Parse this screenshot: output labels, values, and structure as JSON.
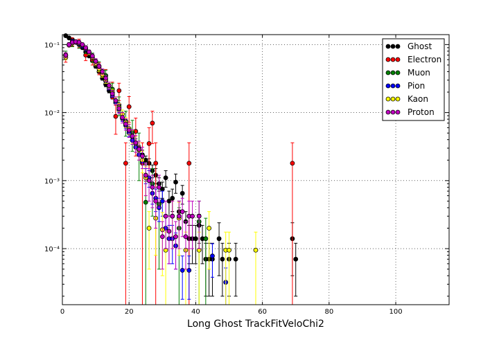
{
  "chart_data": {
    "type": "scatter",
    "xlabel": "Long Ghost TrackFitVeloChi2",
    "ylabel": "",
    "xlim": [
      0,
      116
    ],
    "ylim": [
      1.5e-05,
      0.14
    ],
    "y_scale": "log",
    "grid": true,
    "legend_position": "top-right",
    "x_ticks": [
      0,
      20,
      40,
      60,
      80,
      100
    ],
    "x_tick_labels": [
      "0",
      "20",
      "40",
      "60",
      "80",
      "100"
    ],
    "y_ticks": [
      0.0001,
      0.001,
      0.01,
      0.1
    ],
    "y_tick_labels": [
      "10⁻⁴",
      "10⁻³",
      "10⁻²",
      "10⁻¹"
    ],
    "series": [
      {
        "name": "Ghost",
        "color": "#000000",
        "points": [
          [
            1,
            0.135,
            0.006
          ],
          [
            2,
            0.125,
            0.005
          ],
          [
            3,
            0.118,
            0.005
          ],
          [
            4,
            0.11,
            0.005
          ],
          [
            5,
            0.1,
            0.004
          ],
          [
            6,
            0.09,
            0.004
          ],
          [
            7,
            0.078,
            0.004
          ],
          [
            8,
            0.068,
            0.003
          ],
          [
            9,
            0.058,
            0.003
          ],
          [
            10,
            0.048,
            0.003
          ],
          [
            11,
            0.04,
            0.002
          ],
          [
            12,
            0.032,
            0.002
          ],
          [
            13,
            0.026,
            0.002
          ],
          [
            14,
            0.021,
            0.0015
          ],
          [
            15,
            0.017,
            0.0012
          ],
          [
            16,
            0.014,
            0.001
          ],
          [
            17,
            0.011,
            0.0009
          ],
          [
            18,
            0.0085,
            0.0008
          ],
          [
            19,
            0.0068,
            0.0007
          ],
          [
            20,
            0.0054,
            0.0006
          ],
          [
            21,
            0.0044,
            0.0005
          ],
          [
            22,
            0.0036,
            0.0005
          ],
          [
            23,
            0.0029,
            0.0004
          ],
          [
            24,
            0.0024,
            0.0004
          ],
          [
            25,
            0.002,
            0.0003
          ],
          [
            26,
            0.0018,
            0.0003
          ],
          [
            27,
            0.0014,
            0.0003
          ],
          [
            28,
            0.0012,
            0.0003
          ],
          [
            29,
            0.0009,
            0.0002
          ],
          [
            30,
            0.00075,
            0.0002
          ],
          [
            31,
            0.0011,
            0.0003
          ],
          [
            32,
            0.0005,
            0.0002
          ],
          [
            33,
            0.00055,
            0.0002
          ],
          [
            34,
            0.00095,
            0.0003
          ],
          [
            35,
            0.00035,
            0.00015
          ],
          [
            36,
            0.00065,
            0.0002
          ],
          [
            37,
            0.00025,
            0.0001
          ],
          [
            38,
            0.00014,
            8e-05
          ],
          [
            39,
            0.00014,
            8e-05
          ],
          [
            40,
            0.00014,
            8e-05
          ],
          [
            41,
            0.00022,
            0.0001
          ],
          [
            42,
            0.00014,
            8e-05
          ],
          [
            43,
            7e-05,
            5e-05
          ],
          [
            44,
            7e-05,
            5e-05
          ],
          [
            45,
            7e-05,
            5e-05
          ],
          [
            47,
            0.00014,
            0.0001
          ],
          [
            48,
            7e-05,
            5e-05
          ],
          [
            50,
            7e-05,
            5e-05
          ],
          [
            52,
            7e-05,
            5e-05
          ],
          [
            69,
            0.00014,
            0.0001
          ],
          [
            70,
            7e-05,
            5e-05
          ]
        ]
      },
      {
        "name": "Electron",
        "color": "#ff0000",
        "points": [
          [
            1,
            0.065,
            0.01
          ],
          [
            3,
            0.11,
            0.015
          ],
          [
            5,
            0.105,
            0.015
          ],
          [
            7,
            0.07,
            0.012
          ],
          [
            9,
            0.06,
            0.01
          ],
          [
            11,
            0.045,
            0.009
          ],
          [
            13,
            0.035,
            0.008
          ],
          [
            15,
            0.022,
            0.006
          ],
          [
            16,
            0.0088,
            0.004
          ],
          [
            17,
            0.021,
            0.006
          ],
          [
            19,
            0.0018,
            0.0018
          ],
          [
            20,
            0.0122,
            0.005
          ],
          [
            22,
            0.0053,
            0.003
          ],
          [
            24,
            0.0018,
            0.0018
          ],
          [
            26,
            0.0035,
            0.0025
          ],
          [
            27,
            0.007,
            0.0035
          ],
          [
            28,
            0.0018,
            0.0018
          ],
          [
            38,
            0.0018,
            0.0018
          ],
          [
            69,
            0.0018,
            0.0018
          ]
        ]
      },
      {
        "name": "Muon",
        "color": "#008000",
        "points": [
          [
            1,
            0.07,
            0.01
          ],
          [
            3,
            0.105,
            0.012
          ],
          [
            5,
            0.1,
            0.012
          ],
          [
            7,
            0.085,
            0.011
          ],
          [
            9,
            0.065,
            0.01
          ],
          [
            11,
            0.048,
            0.008
          ],
          [
            13,
            0.035,
            0.007
          ],
          [
            15,
            0.022,
            0.005
          ],
          [
            17,
            0.013,
            0.004
          ],
          [
            19,
            0.0075,
            0.003
          ],
          [
            21,
            0.0052,
            0.0025
          ],
          [
            23,
            0.003,
            0.002
          ],
          [
            25,
            0.00048,
            0.0005
          ],
          [
            27,
            0.0009,
            0.0006
          ],
          [
            29,
            0.00045,
            0.0004
          ],
          [
            35,
            0.0002,
            0.0002
          ],
          [
            41,
            0.00025,
            0.00025
          ],
          [
            43,
            0.00014,
            0.00014
          ]
        ]
      },
      {
        "name": "Pion",
        "color": "#0000ff",
        "points": [
          [
            1,
            0.07,
            0.003
          ],
          [
            2,
            0.1,
            0.003
          ],
          [
            3,
            0.112,
            0.004
          ],
          [
            4,
            0.11,
            0.004
          ],
          [
            5,
            0.102,
            0.004
          ],
          [
            6,
            0.094,
            0.003
          ],
          [
            7,
            0.085,
            0.003
          ],
          [
            8,
            0.075,
            0.003
          ],
          [
            9,
            0.064,
            0.003
          ],
          [
            10,
            0.055,
            0.002
          ],
          [
            11,
            0.045,
            0.002
          ],
          [
            12,
            0.037,
            0.002
          ],
          [
            13,
            0.029,
            0.002
          ],
          [
            14,
            0.023,
            0.0015
          ],
          [
            15,
            0.018,
            0.0012
          ],
          [
            16,
            0.014,
            0.001
          ],
          [
            17,
            0.011,
            0.0009
          ],
          [
            18,
            0.0082,
            0.0008
          ],
          [
            19,
            0.0065,
            0.0007
          ],
          [
            20,
            0.005,
            0.0006
          ],
          [
            21,
            0.0039,
            0.0005
          ],
          [
            22,
            0.0031,
            0.0005
          ],
          [
            23,
            0.0024,
            0.0004
          ],
          [
            24,
            0.0019,
            0.0004
          ],
          [
            25,
            0.0012,
            0.0003
          ],
          [
            26,
            0.0011,
            0.0003
          ],
          [
            27,
            0.00065,
            0.0002
          ],
          [
            28,
            0.00055,
            0.0002
          ],
          [
            29,
            0.0004,
            0.00015
          ],
          [
            30,
            0.0005,
            0.0002
          ],
          [
            31,
            0.0002,
            0.0001
          ],
          [
            32,
            0.00014,
            8e-05
          ],
          [
            33,
            0.00014,
            8e-05
          ],
          [
            34,
            0.00011,
            6e-05
          ],
          [
            36,
            4.8e-05,
            3e-05
          ],
          [
            38,
            4.8e-05,
            3e-05
          ],
          [
            45,
            7.8e-05,
            4e-05
          ],
          [
            49,
            3.2e-05,
            2e-05
          ]
        ]
      },
      {
        "name": "Kaon",
        "color": "#ffff00",
        "points": [
          [
            1,
            0.065,
            0.005
          ],
          [
            2,
            0.098,
            0.006
          ],
          [
            3,
            0.105,
            0.006
          ],
          [
            4,
            0.108,
            0.006
          ],
          [
            5,
            0.105,
            0.006
          ],
          [
            6,
            0.098,
            0.005
          ],
          [
            7,
            0.088,
            0.005
          ],
          [
            8,
            0.075,
            0.005
          ],
          [
            9,
            0.065,
            0.004
          ],
          [
            10,
            0.053,
            0.004
          ],
          [
            11,
            0.044,
            0.004
          ],
          [
            12,
            0.036,
            0.003
          ],
          [
            13,
            0.03,
            0.003
          ],
          [
            14,
            0.025,
            0.002
          ],
          [
            15,
            0.02,
            0.002
          ],
          [
            16,
            0.015,
            0.0018
          ],
          [
            17,
            0.012,
            0.0016
          ],
          [
            18,
            0.0095,
            0.0014
          ],
          [
            19,
            0.0072,
            0.0012
          ],
          [
            20,
            0.0058,
            0.001
          ],
          [
            21,
            0.0045,
            0.001
          ],
          [
            22,
            0.0035,
            0.0009
          ],
          [
            23,
            0.0028,
            0.0008
          ],
          [
            24,
            0.002,
            0.0007
          ],
          [
            25,
            0.0011,
            0.0005
          ],
          [
            26,
            0.0002,
            0.00015
          ],
          [
            28,
            0.00028,
            0.0002
          ],
          [
            30,
            0.00019,
            0.00015
          ],
          [
            31,
            9.5e-05,
            8e-05
          ],
          [
            33,
            0.0003,
            0.0002
          ],
          [
            35,
            0.00028,
            0.0002
          ],
          [
            37,
            9.5e-05,
            8e-05
          ],
          [
            41,
            9.5e-05,
            8e-05
          ],
          [
            44,
            0.0002,
            0.00015
          ],
          [
            49,
            9.5e-05,
            8e-05
          ],
          [
            50,
            9.5e-05,
            8e-05
          ],
          [
            58,
            9.5e-05,
            8e-05
          ]
        ]
      },
      {
        "name": "Proton",
        "color": "#bf00bf",
        "points": [
          [
            1,
            0.07,
            0.006
          ],
          [
            2,
            0.1,
            0.007
          ],
          [
            3,
            0.108,
            0.007
          ],
          [
            4,
            0.11,
            0.007
          ],
          [
            5,
            0.108,
            0.007
          ],
          [
            6,
            0.1,
            0.006
          ],
          [
            7,
            0.09,
            0.006
          ],
          [
            8,
            0.078,
            0.005
          ],
          [
            9,
            0.068,
            0.005
          ],
          [
            10,
            0.057,
            0.005
          ],
          [
            11,
            0.048,
            0.004
          ],
          [
            12,
            0.04,
            0.004
          ],
          [
            13,
            0.032,
            0.003
          ],
          [
            14,
            0.025,
            0.003
          ],
          [
            15,
            0.019,
            0.002
          ],
          [
            16,
            0.015,
            0.002
          ],
          [
            17,
            0.0115,
            0.0018
          ],
          [
            18,
            0.0085,
            0.0015
          ],
          [
            19,
            0.0068,
            0.0013
          ],
          [
            20,
            0.0055,
            0.0012
          ],
          [
            21,
            0.0045,
            0.0011
          ],
          [
            22,
            0.0036,
            0.001
          ],
          [
            23,
            0.0029,
            0.0009
          ],
          [
            24,
            0.0023,
            0.0008
          ],
          [
            25,
            0.0012,
            0.0006
          ],
          [
            26,
            0.001,
            0.0005
          ],
          [
            27,
            0.0008,
            0.0004
          ],
          [
            28,
            0.0005,
            0.0003
          ],
          [
            29,
            0.0008,
            0.0004
          ],
          [
            30,
            0.00015,
            0.0001
          ],
          [
            31,
            0.0003,
            0.0002
          ],
          [
            32,
            0.00018,
            0.00012
          ],
          [
            33,
            0.0003,
            0.0002
          ],
          [
            34,
            0.00015,
            0.0001
          ],
          [
            35,
            0.0003,
            0.0002
          ],
          [
            36,
            0.00035,
            0.0002
          ],
          [
            37,
            0.00015,
            0.0001
          ],
          [
            38,
            0.0003,
            0.0002
          ],
          [
            39,
            0.0003,
            0.0002
          ],
          [
            41,
            0.0003,
            0.0002
          ]
        ]
      }
    ]
  }
}
